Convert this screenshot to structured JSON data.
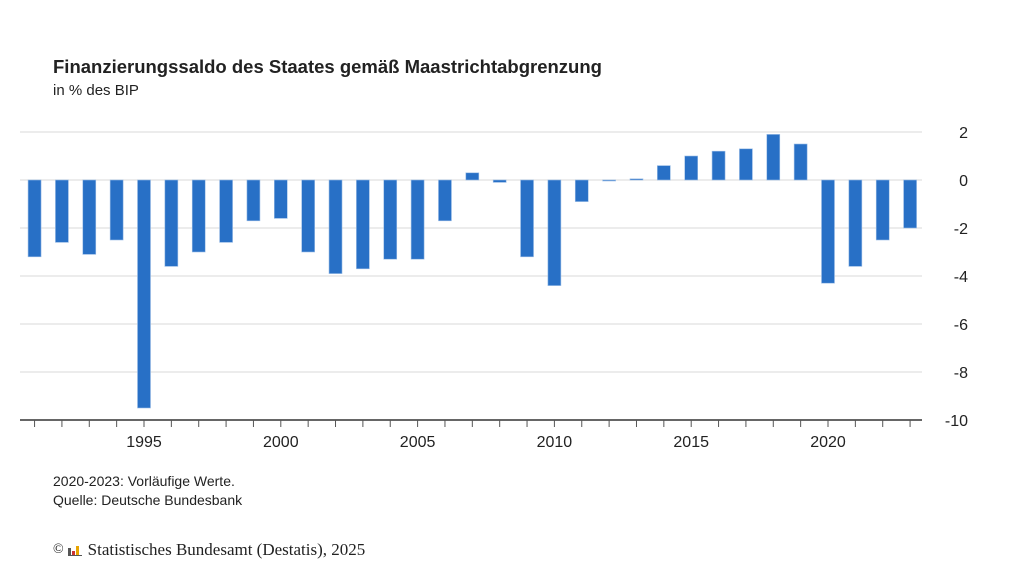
{
  "chart_data": {
    "type": "bar",
    "title": "Finanzierungssaldo des Staates gemäß Maastrichtabgrenzung",
    "subtitle": "in % des BIP",
    "xlabel": "",
    "ylabel": "",
    "ylim": [
      -10,
      2
    ],
    "yticks": [
      2,
      0,
      -2,
      -4,
      -6,
      -8,
      -10
    ],
    "xtick_labels": [
      "1995",
      "2000",
      "2005",
      "2010",
      "2015",
      "2020"
    ],
    "grid": true,
    "y_axis_side": "right",
    "bar_color": "#2870c6",
    "categories": [
      1991,
      1992,
      1993,
      1994,
      1995,
      1996,
      1997,
      1998,
      1999,
      2000,
      2001,
      2002,
      2003,
      2004,
      2005,
      2006,
      2007,
      2008,
      2009,
      2010,
      2011,
      2012,
      2013,
      2014,
      2015,
      2016,
      2017,
      2018,
      2019,
      2020,
      2021,
      2022,
      2023
    ],
    "values": [
      -3.2,
      -2.6,
      -3.1,
      -2.5,
      -9.5,
      -3.6,
      -3.0,
      -2.6,
      -1.7,
      -1.6,
      -3.0,
      -3.9,
      -3.7,
      -3.3,
      -3.3,
      -1.7,
      0.3,
      -0.1,
      -3.2,
      -4.4,
      -0.9,
      0.0,
      0.05,
      0.6,
      1.0,
      1.2,
      1.3,
      1.9,
      1.5,
      -4.3,
      -3.6,
      -2.5,
      -2.0
    ]
  },
  "notes": {
    "line1": "2020-2023: Vorläufige Werte.",
    "line2": "Quelle: Deutsche Bundesbank"
  },
  "copyright": {
    "symbol": "©",
    "text": "Statistisches Bundesamt (Destatis), 2025"
  }
}
